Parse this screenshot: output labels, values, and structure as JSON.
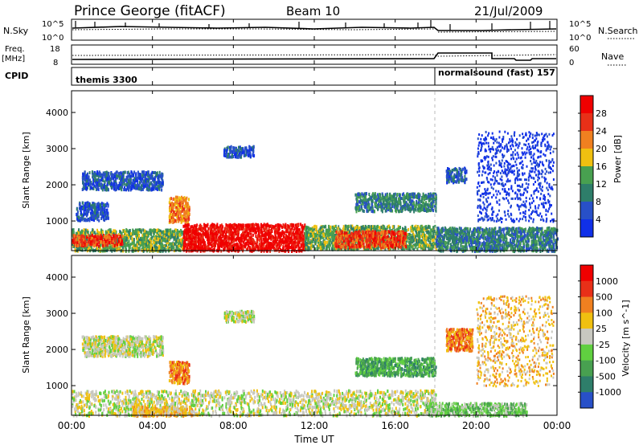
{
  "header": {
    "radar": "Prince George (fitACF)",
    "beam": "Beam 10",
    "date": "21/Jul/2009"
  },
  "top_panels": {
    "nsky_label": "N.Sky",
    "nsky_ticks": [
      "10^5",
      "10^0"
    ],
    "nsearch_label": "N.Search",
    "nsearch_ticks": [
      "10^5",
      "10^0"
    ],
    "freq_label_1": "Freq.",
    "freq_label_2": "[MHz]",
    "freq_ticks": [
      "18",
      "8"
    ],
    "nave_label": "Nave",
    "nave_ticks": [
      "60",
      "0"
    ],
    "cpid_label": "CPID",
    "cpid_segments": [
      {
        "name": "themis 3300",
        "start_h": 0,
        "end_h": 18
      },
      {
        "name": "normalsound (fast) 157",
        "start_h": 18,
        "end_h": 24
      }
    ]
  },
  "x_axis": {
    "label": "Time UT",
    "ticks": [
      "00:00",
      "04:00",
      "08:00",
      "12:00",
      "16:00",
      "20:00",
      "00:00"
    ]
  },
  "chart_data": [
    {
      "type": "heatmap",
      "panel": "power",
      "ylabel": "Slant Range [km]",
      "yticks": [
        "1000",
        "2000",
        "3000",
        "4000"
      ],
      "ylim": [
        180,
        4600
      ],
      "xlim": [
        0,
        24
      ],
      "colorbar_label": "Power [dB]",
      "colorbar_ticks": [
        "4",
        "8",
        "12",
        "16",
        "20",
        "24",
        "28"
      ],
      "colorbar_colors": [
        "#1030e8",
        "#2850c8",
        "#2e7e6a",
        "#48a050",
        "#f0c010",
        "#f08020",
        "#e83018",
        "#f00000"
      ],
      "regions": [
        {
          "t0": 0.0,
          "t1": 5.5,
          "r0": 200,
          "r1": 800,
          "level": 3
        },
        {
          "t0": 0.0,
          "t1": 2.5,
          "r0": 350,
          "r1": 650,
          "level": 6
        },
        {
          "t0": 5.5,
          "t1": 11.5,
          "r0": 200,
          "r1": 950,
          "level": 7
        },
        {
          "t0": 11.5,
          "t1": 18.0,
          "r0": 250,
          "r1": 900,
          "level": 3
        },
        {
          "t0": 13.0,
          "t1": 16.5,
          "r0": 300,
          "r1": 750,
          "level": 6
        },
        {
          "t0": 18.0,
          "t1": 24.0,
          "r0": 200,
          "r1": 850,
          "level": 2
        },
        {
          "t0": 0.5,
          "t1": 4.5,
          "r0": 1900,
          "r1": 2400,
          "level": 1
        },
        {
          "t0": 0.2,
          "t1": 1.8,
          "r0": 1050,
          "r1": 1550,
          "level": 1
        },
        {
          "t0": 4.8,
          "t1": 5.8,
          "r0": 1000,
          "r1": 1700,
          "level": 5
        },
        {
          "t0": 7.5,
          "t1": 9.0,
          "r0": 2800,
          "r1": 3100,
          "level": 1
        },
        {
          "t0": 14.0,
          "t1": 18.0,
          "r0": 1300,
          "r1": 1800,
          "level": 2
        },
        {
          "t0": 18.5,
          "t1": 19.5,
          "r0": 2100,
          "r1": 2500,
          "level": 1
        },
        {
          "t0": 20.0,
          "t1": 23.8,
          "r0": 1000,
          "r1": 3500,
          "level": 0
        }
      ]
    },
    {
      "type": "heatmap",
      "panel": "velocity",
      "ylabel": "Slant Range [km]",
      "yticks": [
        "1000",
        "2000",
        "3000",
        "4000"
      ],
      "ylim": [
        180,
        4600
      ],
      "xlim": [
        0,
        24
      ],
      "colorbar_label": "Velocity [m s^-1]",
      "colorbar_ticks": [
        "1000",
        "500",
        "100",
        "25",
        "-25",
        "-100",
        "-500",
        "-1000"
      ],
      "colorbar_colors": [
        "#2850c8",
        "#2e7e6a",
        "#48a050",
        "#60d040",
        "#c8c8c0",
        "#f0c010",
        "#f08020",
        "#e83018",
        "#f00000"
      ],
      "regions": [
        {
          "t0": 0.0,
          "t1": 18.0,
          "r0": 200,
          "r1": 900,
          "level": 4
        },
        {
          "t0": 3.0,
          "t1": 6.0,
          "r0": 200,
          "r1": 450,
          "level": 5
        },
        {
          "t0": 17.5,
          "t1": 22.5,
          "r0": 200,
          "r1": 550,
          "level": 3
        },
        {
          "t0": 0.5,
          "t1": 4.5,
          "r0": 1850,
          "r1": 2400,
          "level": 4
        },
        {
          "t0": 4.8,
          "t1": 5.8,
          "r0": 1100,
          "r1": 1700,
          "level": 6
        },
        {
          "t0": 7.5,
          "t1": 9.0,
          "r0": 2800,
          "r1": 3100,
          "level": 4
        },
        {
          "t0": 14.0,
          "t1": 18.0,
          "r0": 1300,
          "r1": 1800,
          "level": 2
        },
        {
          "t0": 18.5,
          "t1": 19.8,
          "r0": 2000,
          "r1": 2600,
          "level": 6
        },
        {
          "t0": 20.0,
          "t1": 23.8,
          "r0": 1000,
          "r1": 3500,
          "level": 5
        }
      ]
    }
  ]
}
